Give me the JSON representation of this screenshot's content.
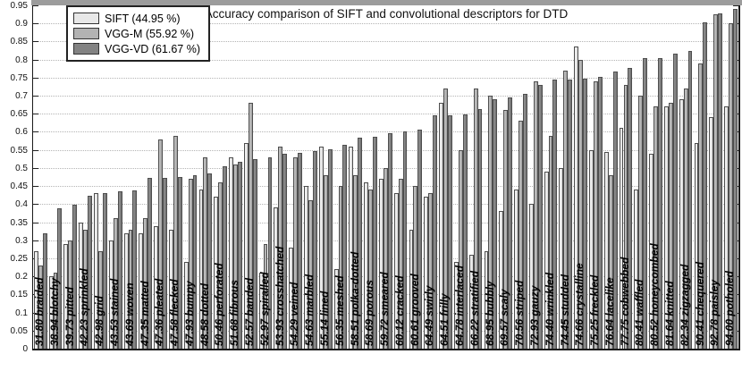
{
  "chart_data": {
    "type": "bar",
    "title": "Accuracy comparison of SIFT and convolutional descriptors for DTD",
    "ylabel": "",
    "xlabel": "",
    "ylim": [
      0,
      0.95
    ],
    "ytick_step": 0.05,
    "grid": "horizontal-dotted",
    "legend_position": "top-left",
    "categories": [
      "braided",
      "blotchy",
      "pitted",
      "sprinkled",
      "grid",
      "stained",
      "woven",
      "matted",
      "pleated",
      "flecked",
      "bumpy",
      "dotted",
      "perforated",
      "fibrous",
      "banded",
      "spiralled",
      "crosshatched",
      "veined",
      "marbled",
      "lined",
      "meshed",
      "polka-dotted",
      "porous",
      "smeared",
      "cracked",
      "grooved",
      "swirly",
      "frilly",
      "interlaced",
      "stratified",
      "bubbly",
      "scaly",
      "striped",
      "gauzy",
      "wrinkled",
      "studded",
      "crystalline",
      "freckled",
      "lacelike",
      "cobwebbed",
      "waffled",
      "honeycombed",
      "knitted",
      "zigzagged",
      "chequered",
      "paisley",
      "potholed"
    ],
    "xtick_labels": [
      "31.80 braided",
      "38.94 blotchy",
      "39.73 pitted",
      "42.23 sprinkled",
      "42.98 grid",
      "43.53 stained",
      "43.69 woven",
      "47.35 matted",
      "47.36 pleated",
      "47.58 flecked",
      "47.93 bumpy",
      "48.58 dotted",
      "50.46 perforated",
      "51.68 fibrous",
      "52.57 banded",
      "52.97 spiralled",
      "53.93 crosshatched",
      "54.29 veined",
      "54.63 marbled",
      "55.14 lined",
      "56.35 meshed",
      "58.51 polka-dotted",
      "58.69 porous",
      "59.72 smeared",
      "60.12 cracked",
      "60.61 grooved",
      "64.49 swirly",
      "64.51 frilly",
      "64.78 interlaced",
      "66.22 stratified",
      "68.95 bubbly",
      "69.57 scaly",
      "70.56 striped",
      "72.93 gauzy",
      "74.40 wrinkled",
      "74.45 studded",
      "74.66 crystalline",
      "75.25 freckled",
      "76.64 lacelike",
      "77.75 cobwebbed",
      "80.41 waffled",
      "80.52 honeycombed",
      "81.64 knitted",
      "82.34 zigzagged",
      "90.41 chequered",
      "92.78 paisley",
      "94.00 potholed"
    ],
    "series": [
      {
        "name": "SIFT (44.95 %)",
        "key": "sift",
        "color": "#e8e8e8",
        "values": [
          0.27,
          0.2,
          0.29,
          0.35,
          0.43,
          0.3,
          0.32,
          0.32,
          0.34,
          0.33,
          0.24,
          0.44,
          0.42,
          0.53,
          0.57,
          0.21,
          0.39,
          0.28,
          0.45,
          0.56,
          0.22,
          0.56,
          0.46,
          0.47,
          0.43,
          0.33,
          0.42,
          0.68,
          0.24,
          0.26,
          0.27,
          0.38,
          0.44,
          0.4,
          0.49,
          0.5,
          0.835,
          0.55,
          0.545,
          0.61,
          0.44,
          0.54,
          0.67,
          0.69,
          0.57,
          0.64,
          0.67
        ]
      },
      {
        "name": "VGG-M (55.92 %)",
        "key": "vgg-m",
        "color": "#b3b3b3",
        "values": [
          0.23,
          0.21,
          0.3,
          0.33,
          0.27,
          0.36,
          0.33,
          0.36,
          0.58,
          0.59,
          0.47,
          0.53,
          0.46,
          0.51,
          0.68,
          0.29,
          0.56,
          0.53,
          0.41,
          0.48,
          0.45,
          0.48,
          0.44,
          0.5,
          0.47,
          0.45,
          0.43,
          0.72,
          0.55,
          0.72,
          0.7,
          0.66,
          0.63,
          0.74,
          0.59,
          0.77,
          0.8,
          0.74,
          0.48,
          0.73,
          0.7,
          0.67,
          0.68,
          0.72,
          0.79,
          0.925,
          0.9
        ]
      },
      {
        "name": "VGG-VD (61.67 %)",
        "key": "vgg-vd",
        "color": "#828282",
        "values": [
          0.318,
          0.3894,
          0.3973,
          0.4223,
          0.4298,
          0.4353,
          0.4369,
          0.4735,
          0.4736,
          0.4758,
          0.4793,
          0.4858,
          0.5046,
          0.5168,
          0.5257,
          0.5297,
          0.5393,
          0.5429,
          0.5463,
          0.5514,
          0.5635,
          0.5851,
          0.5869,
          0.5972,
          0.6012,
          0.6061,
          0.6449,
          0.6451,
          0.6478,
          0.6622,
          0.6895,
          0.6957,
          0.7056,
          0.7293,
          0.744,
          0.7445,
          0.7466,
          0.7525,
          0.7664,
          0.7775,
          0.8041,
          0.8052,
          0.8164,
          0.8234,
          0.9041,
          0.9278,
          0.94
        ]
      }
    ]
  }
}
